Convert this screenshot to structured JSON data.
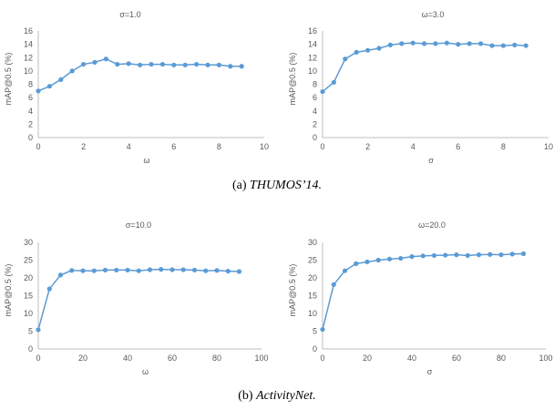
{
  "colors": {
    "series": "#5B9BD5",
    "axis": "#BFBFBF",
    "text": "#595959"
  },
  "captions": {
    "a": {
      "prefix": "(a)",
      "label": "THUMOS’14."
    },
    "b": {
      "prefix": "(b)",
      "label": "ActivityNet."
    }
  },
  "chart_data": [
    {
      "type": "line",
      "title": "σ=1.0",
      "xlabel": "ω",
      "ylabel": "mAP@0.5 (%)",
      "xlim": [
        0,
        10
      ],
      "ylim": [
        0,
        16
      ],
      "x_ticks": [
        0,
        2,
        4,
        6,
        8,
        10
      ],
      "y_ticks": [
        0,
        2,
        4,
        6,
        8,
        10,
        12,
        14,
        16
      ],
      "grid": false,
      "x": [
        0,
        0.5,
        1,
        1.5,
        2,
        2.5,
        3,
        3.5,
        4,
        4.5,
        5,
        5.5,
        6,
        6.5,
        7,
        7.5,
        8,
        8.5,
        9
      ],
      "series": [
        {
          "values": [
            7.0,
            7.7,
            8.7,
            10.0,
            11.0,
            11.3,
            11.8,
            11.0,
            11.1,
            10.9,
            11.0,
            11.0,
            10.9,
            10.9,
            11.0,
            10.9,
            10.9,
            10.7,
            10.7
          ]
        }
      ]
    },
    {
      "type": "line",
      "title": "ω=3.0",
      "xlabel": "σ",
      "ylabel": "mAP@0.5 (%)",
      "xlim": [
        0,
        10
      ],
      "ylim": [
        0,
        16
      ],
      "x_ticks": [
        0,
        2,
        4,
        6,
        8,
        10
      ],
      "y_ticks": [
        0,
        2,
        4,
        6,
        8,
        10,
        12,
        14,
        16
      ],
      "grid": false,
      "x": [
        0,
        0.5,
        1,
        1.5,
        2,
        2.5,
        3,
        3.5,
        4,
        4.5,
        5,
        5.5,
        6,
        6.5,
        7,
        7.5,
        8,
        8.5,
        9
      ],
      "series": [
        {
          "values": [
            6.9,
            8.3,
            11.8,
            12.8,
            13.1,
            13.4,
            13.9,
            14.1,
            14.2,
            14.1,
            14.1,
            14.2,
            14.0,
            14.1,
            14.1,
            13.8,
            13.8,
            13.9,
            13.8
          ]
        }
      ]
    },
    {
      "type": "line",
      "title": "σ=10.0",
      "xlabel": "ω",
      "ylabel": "mAP@0.5 (%)",
      "xlim": [
        0,
        100
      ],
      "ylim": [
        0,
        30
      ],
      "x_ticks": [
        0,
        20,
        40,
        60,
        80,
        100
      ],
      "y_ticks": [
        0,
        5,
        10,
        15,
        20,
        25,
        30
      ],
      "grid": false,
      "x": [
        0,
        5,
        10,
        15,
        20,
        25,
        30,
        35,
        40,
        45,
        50,
        55,
        60,
        65,
        70,
        75,
        80,
        85,
        90
      ],
      "series": [
        {
          "values": [
            5.4,
            16.9,
            20.8,
            22.1,
            22.0,
            22.0,
            22.2,
            22.2,
            22.2,
            22.0,
            22.3,
            22.4,
            22.3,
            22.3,
            22.2,
            22.0,
            22.1,
            21.9,
            21.8
          ]
        }
      ]
    },
    {
      "type": "line",
      "title": "ω=20.0",
      "xlabel": "σ",
      "ylabel": "mAP@0.5 (%)",
      "xlim": [
        0,
        100
      ],
      "ylim": [
        0,
        30
      ],
      "x_ticks": [
        0,
        20,
        40,
        60,
        80,
        100
      ],
      "y_ticks": [
        0,
        5,
        10,
        15,
        20,
        25,
        30
      ],
      "grid": false,
      "x": [
        0,
        5,
        10,
        15,
        20,
        25,
        30,
        35,
        40,
        45,
        50,
        55,
        60,
        65,
        70,
        75,
        80,
        85,
        90
      ],
      "series": [
        {
          "values": [
            5.5,
            18.1,
            22.0,
            24.0,
            24.5,
            25.0,
            25.3,
            25.5,
            26.0,
            26.2,
            26.3,
            26.4,
            26.5,
            26.3,
            26.5,
            26.6,
            26.5,
            26.7,
            26.8
          ]
        }
      ]
    }
  ]
}
